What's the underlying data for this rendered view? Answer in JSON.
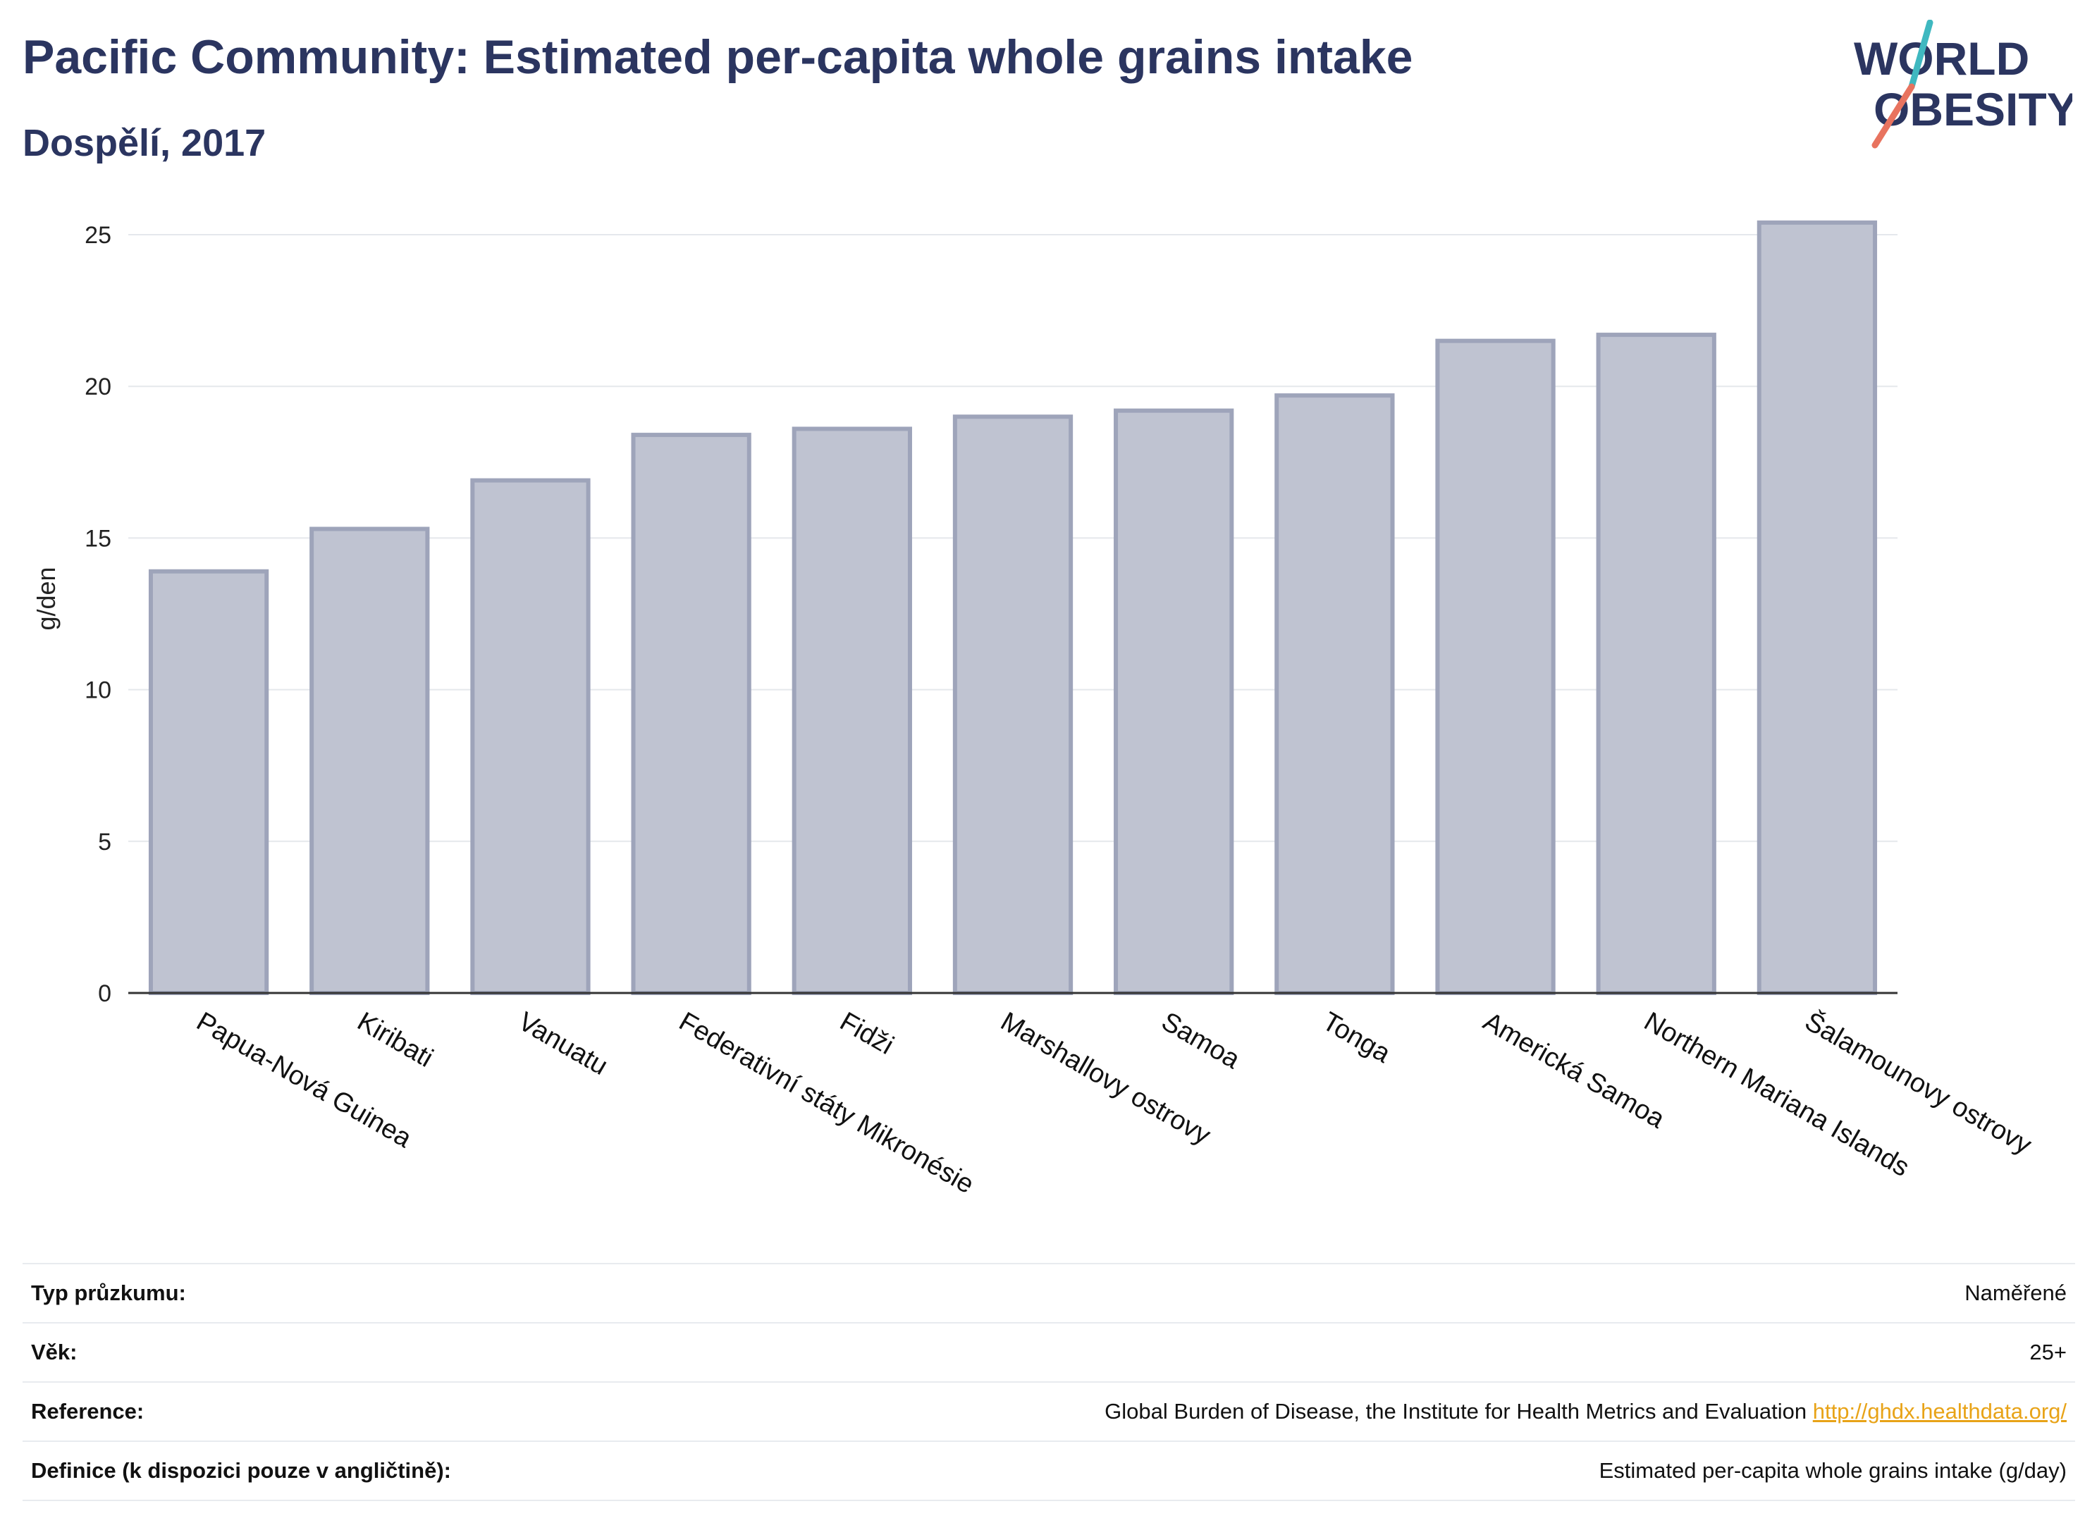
{
  "header": {
    "title": "Pacific Community: Estimated per-capita whole grains intake",
    "subtitle": "Dospělí, 2017"
  },
  "logo": {
    "line1": "WORLD",
    "line2": "OBESITY",
    "icon": "world-obesity-logo"
  },
  "colors": {
    "bar_fill": "#bfc3d1",
    "bar_stroke": "#9ea4ba",
    "text": "#2b3560",
    "grid": "#e5e8ec",
    "link": "#e8a317"
  },
  "chart_data": {
    "type": "bar",
    "title": "Pacific Community: Estimated per-capita whole grains intake",
    "subtitle": "Dospělí, 2017",
    "xlabel": "",
    "ylabel": "g/den",
    "ylim": [
      0,
      26
    ],
    "yticks": [
      0,
      5,
      10,
      15,
      20,
      25
    ],
    "grid": true,
    "categories": [
      "Papua-Nová Guinea",
      "Kiribati",
      "Vanuatu",
      "Federativní státy Mikronésie",
      "Fidži",
      "Marshallovy ostrovy",
      "Samoa",
      "Tonga",
      "Americká Samoa",
      "Northern Mariana Islands",
      "Šalamounovy ostrovy"
    ],
    "values": [
      13.9,
      15.3,
      16.9,
      18.4,
      18.6,
      19.0,
      19.2,
      19.7,
      21.5,
      21.7,
      25.4
    ]
  },
  "info": [
    {
      "label": "Typ průzkumu:",
      "value": "Naměřené"
    },
    {
      "label": "Věk:",
      "value": "25+"
    },
    {
      "label": "Reference:",
      "value": "Global Burden of Disease, the Institute for Health Metrics and Evaluation",
      "link": "http://ghdx.healthdata.org/"
    },
    {
      "label": "Definice (k dispozici pouze v angličtině):",
      "value": "Estimated per-capita whole grains intake (g/day)"
    }
  ]
}
